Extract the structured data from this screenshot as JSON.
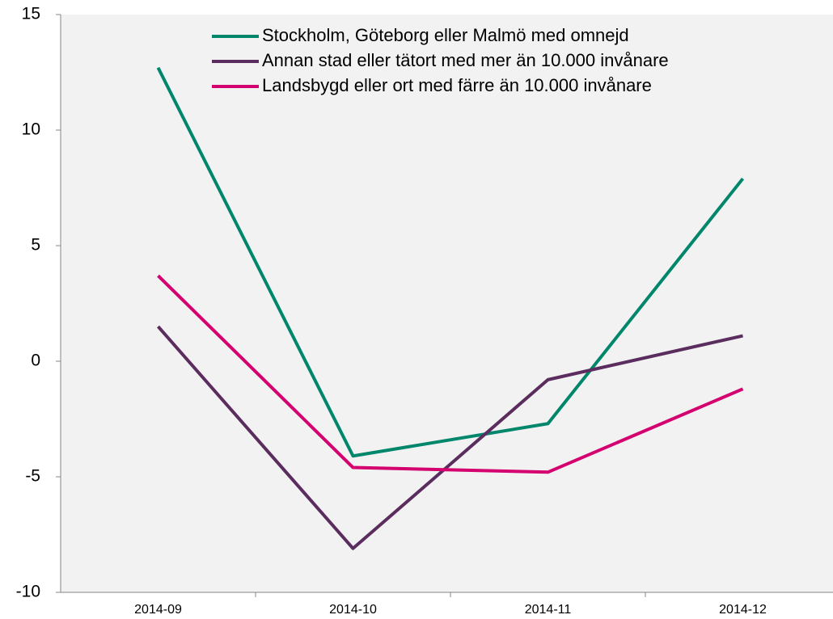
{
  "chart_data": {
    "type": "line",
    "categories": [
      "2014-09",
      "2014-10",
      "2014-11",
      "2014-12"
    ],
    "series": [
      {
        "name": "Stockholm, Göteborg eller Malmö med omnejd",
        "color": "#00866b",
        "values": [
          12.7,
          -4.1,
          -2.7,
          7.9
        ]
      },
      {
        "name": "Annan stad eller tätort med mer än 10.000 invånare",
        "color": "#5b2c5e",
        "values": [
          1.5,
          -8.1,
          -0.8,
          1.1
        ]
      },
      {
        "name": "Landsbygd eller ort med färre än 10.000 invånare",
        "color": "#d4006f",
        "values": [
          3.7,
          -4.6,
          -4.8,
          -1.2
        ]
      }
    ],
    "ylim": [
      -10,
      15
    ],
    "yticks": [
      -10,
      -5,
      0,
      5,
      10,
      15
    ],
    "grid": false,
    "legend": "top"
  }
}
